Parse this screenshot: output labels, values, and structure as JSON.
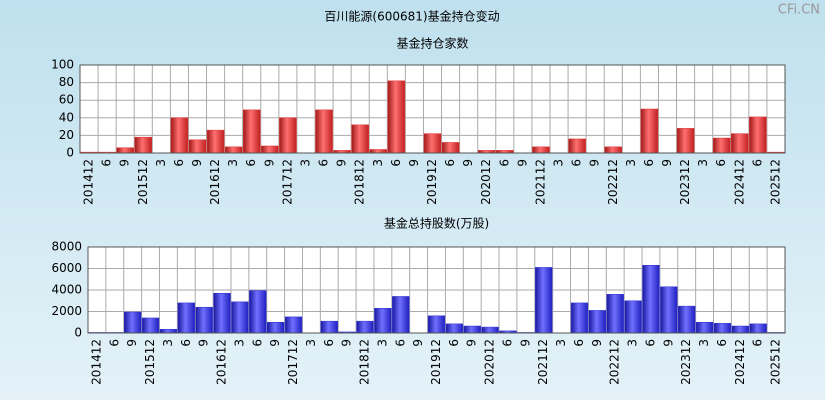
{
  "title": "百川能源(600681)基金持仓变动",
  "watermark": "CFi.CN",
  "chart_data": [
    {
      "type": "bar",
      "title": "基金持仓家数",
      "categories": [
        "201412",
        "6",
        "9",
        "201512",
        "3",
        "6",
        "9",
        "201612",
        "3",
        "6",
        "9",
        "201712",
        "3",
        "6",
        "9",
        "201812",
        "3",
        "6",
        "9",
        "201912",
        "6",
        "9",
        "202012",
        "6",
        "9",
        "202112",
        "3",
        "6",
        "9",
        "202212",
        "3",
        "6",
        "9",
        "202312",
        "3",
        "6",
        "202412",
        "6",
        "202512"
      ],
      "values": [
        1,
        1,
        6,
        18,
        0,
        40,
        15,
        26,
        7,
        49,
        8,
        40,
        0,
        49,
        3,
        32,
        4,
        82,
        0,
        22,
        12,
        0,
        3,
        3,
        0,
        7,
        0,
        16,
        0,
        7,
        0,
        50,
        0,
        28,
        0,
        17,
        22,
        41,
        1
      ],
      "color": "#e03030",
      "ylim": [
        0,
        100
      ],
      "yticks": [
        0,
        20,
        40,
        60,
        80,
        100
      ],
      "grid": true
    },
    {
      "type": "bar",
      "title": "基金总持股数(万股)",
      "categories": [
        "201412",
        "6",
        "9",
        "201512",
        "3",
        "6",
        "9",
        "201612",
        "3",
        "6",
        "9",
        "201712",
        "3",
        "6",
        "9",
        "201812",
        "3",
        "6",
        "9",
        "201912",
        "6",
        "9",
        "202012",
        "6",
        "9",
        "202112",
        "3",
        "6",
        "9",
        "202212",
        "3",
        "6",
        "9",
        "202312",
        "3",
        "6",
        "202412",
        "6",
        "202512"
      ],
      "values": [
        50,
        50,
        1950,
        1400,
        350,
        2800,
        2400,
        3700,
        2900,
        3950,
        1000,
        1500,
        0,
        1100,
        100,
        1100,
        2300,
        3400,
        0,
        1600,
        850,
        650,
        550,
        200,
        50,
        6100,
        0,
        2800,
        2100,
        3600,
        3000,
        6300,
        4300,
        2500,
        1000,
        900,
        650,
        850,
        50
      ],
      "color": "#3030d0",
      "ylim": [
        0,
        8000
      ],
      "yticks": [
        0,
        2000,
        4000,
        6000,
        8000
      ],
      "grid": true
    }
  ]
}
